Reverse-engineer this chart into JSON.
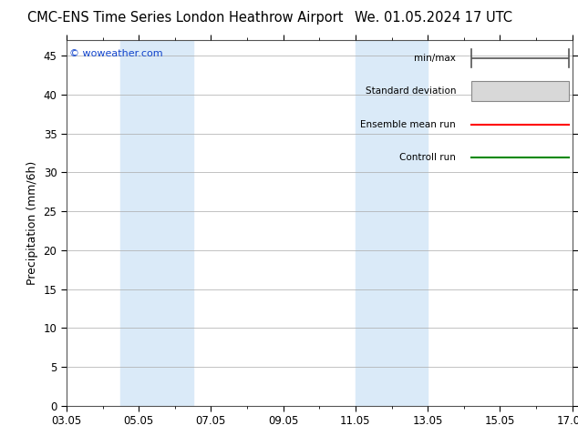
{
  "title_left": "CMC-ENS Time Series London Heathrow Airport",
  "title_right": "We. 01.05.2024 17 UTC",
  "ylabel": "Precipitation (mm/6h)",
  "watermark": "© woweather.com",
  "ylim": [
    0,
    47
  ],
  "yticks": [
    0,
    5,
    10,
    15,
    20,
    25,
    30,
    35,
    40,
    45
  ],
  "x_start": 0,
  "x_end": 14,
  "xtick_labels": [
    "03.05",
    "05.05",
    "07.05",
    "09.05",
    "11.05",
    "13.05",
    "15.05",
    "17.05"
  ],
  "xtick_positions": [
    0,
    2,
    4,
    6,
    8,
    10,
    12,
    14
  ],
  "band1_x0": 1.5,
  "band1_x1": 3.5,
  "band2_x0": 8.0,
  "band2_x1": 9.0,
  "band3_x0": 9.0,
  "band3_x1": 10.0,
  "band_color": "#daeaf8",
  "legend_labels": [
    "min/max",
    "Standard deviation",
    "Ensemble mean run",
    "Controll run"
  ],
  "legend_colors_line": [
    "#888888",
    "#cccccc",
    "#ff0000",
    "#008800"
  ],
  "bg_color": "#ffffff",
  "plot_bg": "#ffffff",
  "title_fontsize": 10.5,
  "axis_label_fontsize": 9,
  "tick_fontsize": 8.5,
  "watermark_color": "#1144cc"
}
